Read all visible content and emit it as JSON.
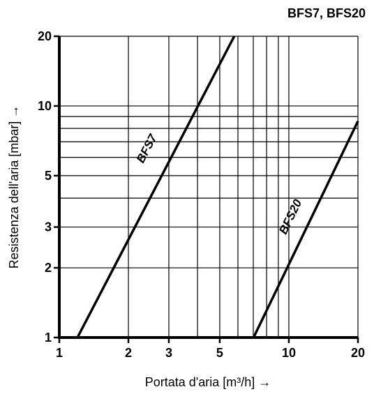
{
  "chart_data": {
    "type": "line",
    "title": "BFS7, BFS20",
    "xlabel": "Portata d'aria [m³/h] →",
    "ylabel": "Resistenza dell'aria [mbar] →",
    "xscale": "log",
    "yscale": "log",
    "xlim": [
      1,
      20
    ],
    "ylim": [
      1,
      20
    ],
    "grid": true,
    "x_ticks": [
      {
        "value": 1,
        "label": "1"
      },
      {
        "value": 2,
        "label": "2"
      },
      {
        "value": 3,
        "label": "3"
      },
      {
        "value": 5,
        "label": "5"
      },
      {
        "value": 10,
        "label": "10"
      },
      {
        "value": 20,
        "label": "20"
      }
    ],
    "y_ticks": [
      {
        "value": 1,
        "label": "1"
      },
      {
        "value": 2,
        "label": "2"
      },
      {
        "value": 3,
        "label": "3"
      },
      {
        "value": 5,
        "label": "5"
      },
      {
        "value": 10,
        "label": "10"
      },
      {
        "value": 20,
        "label": "20"
      }
    ],
    "x_gridlines": [
      2,
      3,
      4,
      5,
      6,
      7,
      8,
      9,
      10
    ],
    "y_gridlines": [
      2,
      3,
      4,
      5,
      6,
      7,
      8,
      9,
      10
    ],
    "series": [
      {
        "name": "BFS7",
        "x": [
          1.2,
          5.78
        ],
        "y": [
          1.0,
          20.0
        ]
      },
      {
        "name": "BFS20",
        "x": [
          7.02,
          20.0
        ],
        "y": [
          1.0,
          8.6
        ]
      }
    ],
    "colors": {
      "line": "#000000",
      "grid": "#000000",
      "background": "#ffffff"
    }
  }
}
